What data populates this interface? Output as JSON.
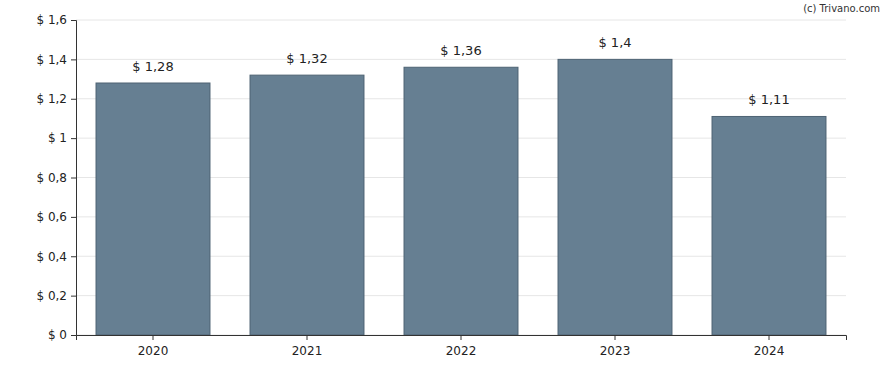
{
  "chart_data": {
    "type": "bar",
    "annotations": [
      "(c) Trivano.com"
    ],
    "categories": [
      "2020",
      "2021",
      "2022",
      "2023",
      "2024"
    ],
    "values": [
      1.28,
      1.32,
      1.36,
      1.4,
      1.11
    ],
    "value_labels": [
      "$ 1,28",
      "$ 1,32",
      "$ 1,36",
      "$ 1,4",
      "$ 1,11"
    ],
    "data_labels": true,
    "color": "#667f92",
    "ylim": [
      0,
      1.6
    ],
    "yticks": [
      {
        "value": 0,
        "label": "$ 0"
      },
      {
        "value": 0.2,
        "label": "$ 0,2"
      },
      {
        "value": 0.4,
        "label": "$ 0,4"
      },
      {
        "value": 0.6,
        "label": "$ 0,6"
      },
      {
        "value": 0.8,
        "label": "$ 0,8"
      },
      {
        "value": 1,
        "label": "$ 1"
      },
      {
        "value": 1.2,
        "label": "$ 1,2"
      },
      {
        "value": 1.4,
        "label": "$ 1,4"
      },
      {
        "value": 1.6,
        "label": "$ 1,6"
      }
    ],
    "grid": true
  }
}
